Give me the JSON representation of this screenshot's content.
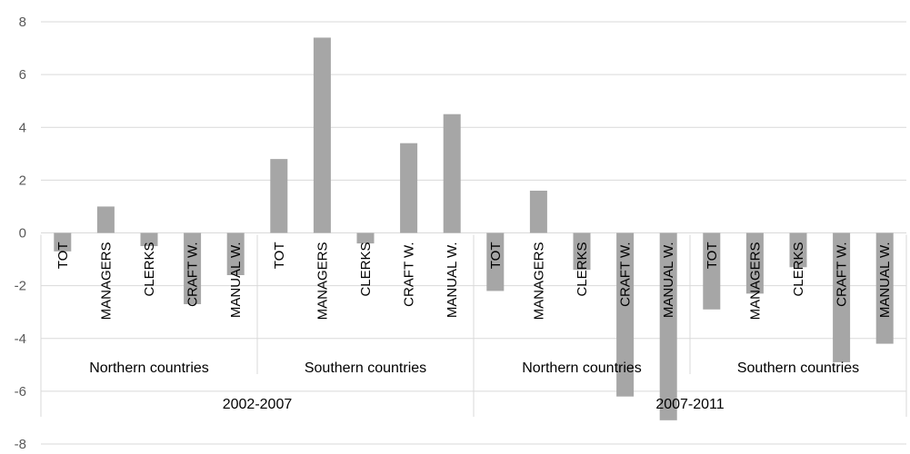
{
  "chart_data": {
    "type": "bar",
    "title": "",
    "xlabel": "",
    "ylabel": "",
    "ylim": [
      -8,
      8
    ],
    "ytick_step": 2,
    "grid": true,
    "bar_color": "#a6a6a6",
    "categories": [
      "TOT",
      "MANAGERS",
      "CLERKS",
      "CRAFT W.",
      "MANUAL W.",
      "TOT",
      "MANAGERS",
      "CLERKS",
      "CRAFT W.",
      "MANUAL W.",
      "TOT",
      "MANAGERS",
      "CLERKS",
      "CRAFT W.",
      "MANUAL W.",
      "TOT",
      "MANAGERS",
      "CLERKS",
      "CRAFT W.",
      "MANUAL W."
    ],
    "values": [
      -0.7,
      1.0,
      -0.5,
      -2.7,
      -1.6,
      2.8,
      7.4,
      -0.4,
      3.4,
      4.5,
      -2.2,
      1.6,
      -1.4,
      -6.2,
      -7.1,
      -2.9,
      -2.3,
      -1.3,
      -4.9,
      -4.2
    ],
    "groups": [
      "Northern countries",
      "Southern countries",
      "Northern countries",
      "Southern countries"
    ],
    "periods": [
      "2002-2007",
      "2007-2011"
    ]
  }
}
